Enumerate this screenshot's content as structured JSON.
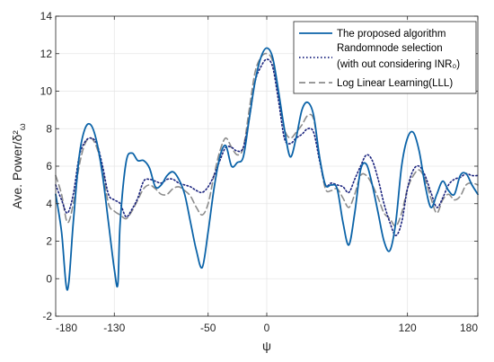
{
  "chart_data": {
    "type": "line",
    "xlabel": "ψ",
    "ylabel": "Ave. Power/δ²",
    "ylabel_sub": "ω",
    "xlim": [
      -180,
      180
    ],
    "ylim": [
      -2,
      14
    ],
    "xticks": [
      -180,
      -130,
      -50,
      0,
      120,
      180
    ],
    "yticks": [
      -2,
      0,
      2,
      4,
      6,
      8,
      10,
      12,
      14
    ],
    "grid": true,
    "legend_position": "top-right",
    "series": [
      {
        "name": "The proposed algorithm",
        "name_line2": "",
        "color": "#0b63a8",
        "dash": "solid",
        "x": [
          -180,
          -175,
          -170,
          -165,
          -160,
          -155,
          -150,
          -145,
          -140,
          -135,
          -130,
          -127,
          -125,
          -120,
          -115,
          -110,
          -105,
          -100,
          -95,
          -90,
          -85,
          -80,
          -75,
          -70,
          -65,
          -60,
          -55,
          -50,
          -45,
          -40,
          -35,
          -30,
          -25,
          -20,
          -15,
          -10,
          -5,
          0,
          5,
          10,
          15,
          20,
          25,
          30,
          35,
          40,
          45,
          50,
          55,
          60,
          65,
          70,
          75,
          80,
          85,
          90,
          95,
          100,
          105,
          110,
          115,
          120,
          125,
          130,
          135,
          140,
          145,
          150,
          155,
          160,
          165,
          170,
          175,
          180
        ],
        "y": [
          4.5,
          2.5,
          -0.6,
          3.0,
          6.5,
          8.0,
          8.2,
          7.3,
          5.5,
          3.0,
          0.5,
          -0.3,
          3.0,
          6.2,
          6.7,
          6.3,
          6.3,
          5.9,
          4.9,
          5.0,
          5.5,
          5.7,
          5.3,
          4.5,
          3.0,
          1.5,
          0.6,
          2.5,
          4.8,
          6.5,
          7.1,
          6.0,
          6.2,
          6.5,
          8.5,
          10.5,
          11.8,
          12.3,
          11.8,
          10.0,
          8.0,
          6.5,
          7.5,
          9.0,
          9.4,
          8.7,
          6.5,
          5.0,
          5.0,
          4.8,
          3.0,
          1.8,
          3.5,
          5.8,
          6.1,
          5.0,
          3.5,
          2.0,
          1.5,
          3.0,
          6.0,
          7.5,
          7.8,
          6.8,
          5.0,
          3.8,
          4.5,
          5.2,
          4.7,
          4.5,
          5.5,
          5.6,
          5.0,
          4.5
        ]
      },
      {
        "name": "Randomnode selection",
        "name_line2": "(with out considering INR₀)",
        "color": "#1a237e",
        "dash": "dotted",
        "x": [
          -180,
          -175,
          -170,
          -165,
          -160,
          -155,
          -150,
          -145,
          -140,
          -135,
          -130,
          -125,
          -120,
          -115,
          -110,
          -105,
          -100,
          -95,
          -90,
          -85,
          -80,
          -75,
          -70,
          -65,
          -60,
          -55,
          -50,
          -45,
          -40,
          -35,
          -30,
          -25,
          -20,
          -15,
          -10,
          -5,
          0,
          5,
          10,
          15,
          20,
          25,
          30,
          35,
          40,
          45,
          50,
          55,
          60,
          65,
          70,
          75,
          80,
          85,
          90,
          95,
          100,
          105,
          110,
          115,
          120,
          125,
          130,
          135,
          140,
          145,
          150,
          155,
          160,
          165,
          170,
          175,
          180
        ],
        "y": [
          5.0,
          4.2,
          3.5,
          4.5,
          6.5,
          7.3,
          7.5,
          7.2,
          6.0,
          4.5,
          4.2,
          4.0,
          3.3,
          3.7,
          4.3,
          5.2,
          5.3,
          5.2,
          5.1,
          5.3,
          5.3,
          5.1,
          5.0,
          4.9,
          4.7,
          4.6,
          4.9,
          5.5,
          6.3,
          7.0,
          7.0,
          6.8,
          7.0,
          8.5,
          10.5,
          11.3,
          11.7,
          11.3,
          9.5,
          7.5,
          7.2,
          7.5,
          7.7,
          8.0,
          7.8,
          6.3,
          5.0,
          5.1,
          5.0,
          4.9,
          4.6,
          5.3,
          6.0,
          6.6,
          6.3,
          5.3,
          4.0,
          3.0,
          2.3,
          3.0,
          4.8,
          5.8,
          6.0,
          5.5,
          4.6,
          3.8,
          4.3,
          5.0,
          5.3,
          5.4,
          5.6,
          5.5,
          5.5
        ]
      },
      {
        "name": "Log Linear Learning(LLL)",
        "name_line2": "",
        "color": "#8c8c8c",
        "dash": "dashed",
        "x": [
          -180,
          -175,
          -170,
          -165,
          -160,
          -155,
          -150,
          -145,
          -140,
          -135,
          -130,
          -125,
          -120,
          -115,
          -110,
          -105,
          -100,
          -95,
          -90,
          -85,
          -80,
          -75,
          -70,
          -65,
          -60,
          -55,
          -50,
          -45,
          -40,
          -35,
          -30,
          -25,
          -20,
          -15,
          -10,
          -5,
          0,
          5,
          10,
          15,
          20,
          25,
          30,
          35,
          40,
          45,
          50,
          55,
          60,
          65,
          70,
          75,
          80,
          85,
          90,
          95,
          100,
          105,
          110,
          115,
          120,
          125,
          130,
          135,
          140,
          145,
          150,
          155,
          160,
          165,
          170,
          175,
          180
        ],
        "y": [
          5.5,
          4.5,
          3.0,
          4.0,
          6.0,
          7.2,
          7.5,
          7.0,
          5.8,
          4.0,
          3.6,
          3.4,
          3.2,
          3.6,
          4.2,
          4.8,
          5.0,
          4.8,
          4.5,
          4.5,
          4.8,
          4.9,
          4.7,
          4.4,
          3.8,
          3.4,
          4.0,
          5.5,
          6.8,
          7.5,
          7.0,
          6.6,
          7.0,
          9.0,
          11.0,
          11.8,
          12.0,
          11.6,
          9.8,
          8.0,
          7.5,
          7.8,
          8.2,
          8.7,
          8.5,
          6.5,
          4.8,
          4.7,
          4.8,
          4.3,
          3.8,
          4.5,
          5.5,
          5.5,
          5.0,
          4.3,
          3.5,
          3.2,
          2.8,
          3.5,
          4.8,
          5.5,
          5.8,
          5.3,
          4.3,
          3.5,
          4.2,
          4.5,
          4.2,
          4.4,
          5.0,
          5.1,
          5.0
        ]
      }
    ]
  }
}
